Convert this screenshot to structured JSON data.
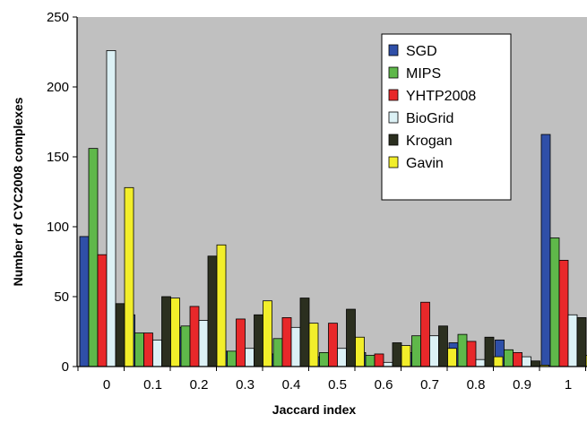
{
  "chart_data": {
    "type": "bar",
    "xlabel": "Jaccard index",
    "ylabel": "Number of CYC2008 complexes",
    "ylim": [
      0,
      250
    ],
    "yticks": [
      "0",
      "50",
      "100",
      "150",
      "200",
      "250"
    ],
    "categories": [
      "0",
      "0.1",
      "0.2",
      "0.3",
      "0.4",
      "0.5",
      "0.6",
      "0.7",
      "0.8",
      "0.9",
      "1"
    ],
    "grid": false,
    "legend_position": "top-right",
    "plot_background": "#c0c0c0",
    "series": [
      {
        "name": "SGD",
        "color": "#2f4fa8",
        "values": [
          93,
          37,
          28,
          11,
          9,
          7,
          10,
          10,
          17,
          19,
          166
        ]
      },
      {
        "name": "MIPS",
        "color": "#5fb84a",
        "values": [
          156,
          24,
          29,
          11,
          20,
          10,
          8,
          22,
          23,
          12,
          92
        ]
      },
      {
        "name": "YHTP2008",
        "color": "#e8282a",
        "values": [
          80,
          24,
          43,
          34,
          35,
          31,
          9,
          46,
          18,
          10,
          76
        ]
      },
      {
        "name": "BioGrid",
        "color": "#dcf1f5",
        "values": [
          226,
          19,
          33,
          13,
          28,
          13,
          3,
          22,
          5,
          7,
          37
        ]
      },
      {
        "name": "Krogan",
        "color": "#2b2f1f",
        "values": [
          45,
          50,
          79,
          37,
          49,
          41,
          17,
          29,
          21,
          4,
          35
        ]
      },
      {
        "name": "Gavin",
        "color": "#f2ee2a",
        "values": [
          128,
          49,
          87,
          47,
          31,
          21,
          15,
          13,
          7,
          1,
          8
        ]
      }
    ]
  }
}
